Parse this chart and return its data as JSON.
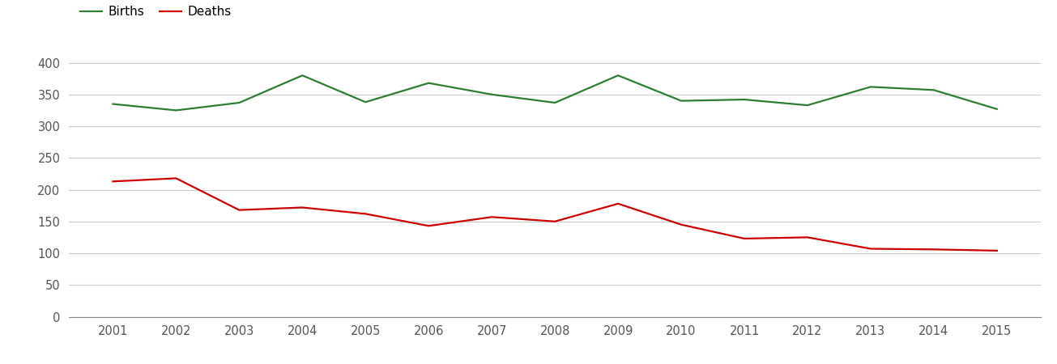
{
  "years": [
    2001,
    2002,
    2003,
    2004,
    2005,
    2006,
    2007,
    2008,
    2009,
    2010,
    2011,
    2012,
    2013,
    2014,
    2015
  ],
  "births": [
    335,
    325,
    337,
    380,
    338,
    368,
    350,
    337,
    380,
    340,
    342,
    333,
    362,
    357,
    327
  ],
  "deaths": [
    213,
    218,
    168,
    172,
    162,
    143,
    157,
    150,
    178,
    145,
    123,
    125,
    107,
    106,
    104
  ],
  "births_color": "#2e7d32",
  "deaths_color": "#cc0000",
  "births_label": "Births",
  "deaths_label": "Deaths",
  "ylim": [
    0,
    430
  ],
  "yticks": [
    0,
    50,
    100,
    150,
    200,
    250,
    300,
    350,
    400
  ],
  "background_color": "#ffffff",
  "grid_color": "#cccccc",
  "line_width": 1.6,
  "legend_fontsize": 11,
  "tick_fontsize": 10.5,
  "tick_color": "#555555"
}
